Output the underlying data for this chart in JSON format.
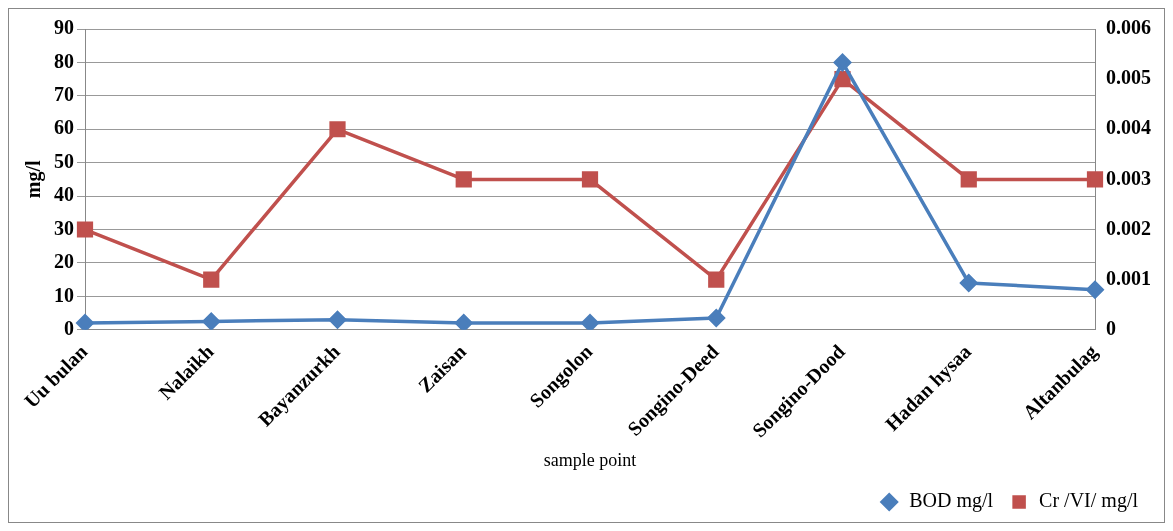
{
  "chart_data": {
    "type": "line",
    "xlabel": "sample point",
    "ylabel": "mg/l",
    "categories": [
      "Uu bulan",
      "Nalaikh",
      "Bayanzurkh",
      "Zaisan",
      "Songolon",
      "Songino-Deed",
      "Songino-Dood",
      "Hadan hysaa",
      "Altanbulag"
    ],
    "series": [
      {
        "name": "BOD mg/l",
        "color": "#4a7ebb",
        "marker": "diamond",
        "values": [
          2,
          2.5,
          3,
          2,
          2,
          3.5,
          80,
          14,
          12
        ]
      },
      {
        "name": "Cr /VI/ mg/l",
        "color": "#c0504d",
        "marker": "square",
        "axis": "y2",
        "values": [
          0.002,
          0.001,
          0.004,
          0.003,
          0.003,
          0.001,
          0.005,
          0.003,
          0.003
        ]
      }
    ],
    "ylim": [
      0,
      90
    ],
    "yticks": [
      0,
      10,
      20,
      30,
      40,
      50,
      60,
      70,
      80,
      90
    ],
    "y2lim": [
      0,
      0.006
    ],
    "y2ticks": [
      0,
      0.001,
      0.002,
      0.003,
      0.004,
      0.005,
      0.006
    ],
    "grid": "y",
    "legend": "bottom right"
  }
}
